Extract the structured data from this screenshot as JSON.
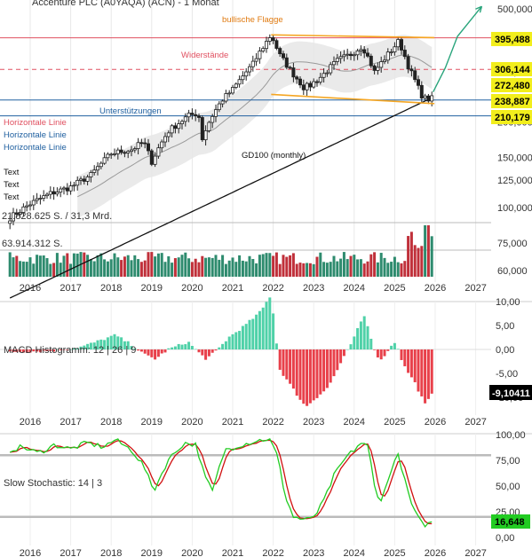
{
  "window": {
    "title": "Accenture PLC (A0YAQA) (ACN) - 1 Monat"
  },
  "colors": {
    "up": "#2e8b6e",
    "down": "#c0303a",
    "resistance": "#e05060",
    "support": "#2060a0",
    "flag": "#f5a623",
    "gd100": "#111111",
    "tag_bg": "#f2ee1c",
    "macd_pos": "#4fd1a8",
    "macd_neg": "#e8404a",
    "stoch_k": "#22cc22",
    "stoch_d": "#d01010"
  },
  "chart_data": [
    {
      "type": "candlestick",
      "title": "Accenture PLC (A0YAQA) (ACN) - 1 Monat",
      "x_ticks": [
        "2016",
        "2017",
        "2018",
        "2019",
        "2020",
        "2021",
        "2022",
        "2023",
        "2024",
        "2025",
        "2026",
        "2027"
      ],
      "y_ticks": [
        "500,000",
        "400,000",
        "300,000",
        "200,000",
        "150,000",
        "125,000",
        "100,000",
        "75,000",
        "60,000"
      ],
      "y_tick_values": [
        500,
        400,
        300,
        200,
        150,
        125,
        100,
        75,
        60
      ],
      "y_scale": "log",
      "ylim": [
        55,
        520
      ],
      "xlim": [
        2015.5,
        2027.4
      ],
      "anchors": [
        [
          2015.5,
          92
        ],
        [
          2016.0,
          103
        ],
        [
          2016.5,
          112
        ],
        [
          2017.0,
          118
        ],
        [
          2017.5,
          130
        ],
        [
          2018.0,
          155
        ],
        [
          2018.5,
          160
        ],
        [
          2018.8,
          170
        ],
        [
          2019.0,
          145
        ],
        [
          2019.4,
          185
        ],
        [
          2019.9,
          210
        ],
        [
          2020.15,
          215
        ],
        [
          2020.25,
          175
        ],
        [
          2020.45,
          205
        ],
        [
          2020.75,
          240
        ],
        [
          2021.0,
          260
        ],
        [
          2021.5,
          320
        ],
        [
          2021.95,
          405
        ],
        [
          2022.15,
          345
        ],
        [
          2022.45,
          300
        ],
        [
          2022.75,
          265
        ],
        [
          2022.9,
          268
        ],
        [
          2023.2,
          290
        ],
        [
          2023.6,
          330
        ],
        [
          2023.9,
          345
        ],
        [
          2024.2,
          370
        ],
        [
          2024.5,
          300
        ],
        [
          2024.9,
          355
        ],
        [
          2025.1,
          385
        ],
        [
          2025.35,
          310
        ],
        [
          2025.65,
          250
        ],
        [
          2025.8,
          238
        ],
        [
          2025.95,
          250
        ]
      ],
      "levels": [
        {
          "label": "395,488",
          "value": 395.488,
          "kind": "resistance"
        },
        {
          "label": "306,144",
          "value": 306.144,
          "kind": "resistance"
        },
        {
          "label": "272,480",
          "value": 272.48,
          "kind": "last"
        },
        {
          "label": "238,887",
          "value": 238.887,
          "kind": "support"
        },
        {
          "label": "210,179",
          "value": 210.179,
          "kind": "support"
        }
      ],
      "annotations": {
        "flag": "bullische Flagge",
        "resistances": "Widerstände",
        "supports": "Unterstützungen",
        "h1": "Horizontale Linie",
        "h2": "Horizontale Linie",
        "h3": "Horizontale Linie",
        "gd": "GD100 (monthly)",
        "t1": "Text",
        "t2": "Text",
        "t3": "Text"
      },
      "volume": {
        "label_top": "21.828.625 S. / 31,3 Mrd.",
        "label_mid": "63.914.312 S."
      },
      "projection": [
        [
          2025.95,
          255
        ],
        [
          2026.25,
          310
        ],
        [
          2026.55,
          400
        ],
        [
          2027.15,
          510
        ]
      ]
    },
    {
      "type": "bar",
      "title": "MACD Histogramm: 12 | 26 | 9",
      "x_ticks": [
        "2016",
        "2017",
        "2018",
        "2019",
        "2020",
        "2021",
        "2022",
        "2023",
        "2024",
        "2025",
        "2026",
        "2027"
      ],
      "y_ticks": [
        "10,00",
        "5,00",
        "0,00",
        "-5,00",
        "-10,00"
      ],
      "y_tick_values": [
        10,
        5,
        0,
        -5,
        -10
      ],
      "ylim": [
        -12,
        12
      ],
      "last_value": "-9,10411",
      "anchors": [
        [
          2015.5,
          -0.5
        ],
        [
          2016.5,
          -0.3
        ],
        [
          2017.2,
          0.4
        ],
        [
          2017.6,
          1.5
        ],
        [
          2018.1,
          3.0
        ],
        [
          2018.5,
          1.0
        ],
        [
          2018.8,
          -1.0
        ],
        [
          2019.1,
          -2.0
        ],
        [
          2019.4,
          0.0
        ],
        [
          2019.9,
          1.6
        ],
        [
          2020.2,
          -1.0
        ],
        [
          2020.35,
          -2.0
        ],
        [
          2020.6,
          -0.3
        ],
        [
          2020.9,
          2.5
        ],
        [
          2021.3,
          5.0
        ],
        [
          2021.7,
          8.0
        ],
        [
          2021.95,
          11.5
        ],
        [
          2022.1,
          0.0
        ],
        [
          2022.15,
          -4.0
        ],
        [
          2022.55,
          -9.0
        ],
        [
          2022.8,
          -12.0
        ],
        [
          2023.0,
          -10.5
        ],
        [
          2023.35,
          -8.0
        ],
        [
          2023.6,
          -4.0
        ],
        [
          2023.85,
          0.0
        ],
        [
          2024.0,
          2.5
        ],
        [
          2024.15,
          5.5
        ],
        [
          2024.25,
          7.0
        ],
        [
          2024.4,
          3.0
        ],
        [
          2024.5,
          0.0
        ],
        [
          2024.65,
          -2.5
        ],
        [
          2024.8,
          -0.5
        ],
        [
          2024.9,
          0.5
        ],
        [
          2025.0,
          1.5
        ],
        [
          2025.1,
          0.0
        ],
        [
          2025.2,
          -3.0
        ],
        [
          2025.5,
          -7.0
        ],
        [
          2025.75,
          -11.5
        ],
        [
          2025.95,
          -9.1
        ]
      ]
    },
    {
      "type": "line",
      "title": "Slow Stochastic: 14 | 3",
      "x_ticks": [
        "2016",
        "2017",
        "2018",
        "2019",
        "2020",
        "2021",
        "2022",
        "2023",
        "2024",
        "2025",
        "2026",
        "2027"
      ],
      "y_ticks": [
        "100,00",
        "75,00",
        "50,00",
        "25,00",
        "0,00"
      ],
      "y_tick_values": [
        100,
        75,
        50,
        25,
        0
      ],
      "ylim": [
        -3,
        103
      ],
      "last_value": "16,648",
      "k_anchors": [
        [
          2015.5,
          85
        ],
        [
          2015.8,
          88
        ],
        [
          2016.2,
          82
        ],
        [
          2016.6,
          90
        ],
        [
          2017.0,
          86
        ],
        [
          2017.4,
          92
        ],
        [
          2017.8,
          88
        ],
        [
          2018.1,
          95
        ],
        [
          2018.5,
          85
        ],
        [
          2018.8,
          70
        ],
        [
          2019.05,
          45
        ],
        [
          2019.4,
          75
        ],
        [
          2019.8,
          92
        ],
        [
          2020.1,
          90
        ],
        [
          2020.3,
          60
        ],
        [
          2020.5,
          45
        ],
        [
          2020.8,
          85
        ],
        [
          2021.2,
          90
        ],
        [
          2021.6,
          94
        ],
        [
          2021.9,
          96
        ],
        [
          2022.1,
          80
        ],
        [
          2022.3,
          40
        ],
        [
          2022.5,
          20
        ],
        [
          2022.7,
          18
        ],
        [
          2022.9,
          17
        ],
        [
          2023.1,
          25
        ],
        [
          2023.3,
          40
        ],
        [
          2023.5,
          60
        ],
        [
          2023.8,
          78
        ],
        [
          2024.0,
          85
        ],
        [
          2024.15,
          92
        ],
        [
          2024.35,
          88
        ],
        [
          2024.5,
          50
        ],
        [
          2024.65,
          35
        ],
        [
          2024.8,
          50
        ],
        [
          2024.95,
          72
        ],
        [
          2025.1,
          80
        ],
        [
          2025.25,
          55
        ],
        [
          2025.45,
          28
        ],
        [
          2025.65,
          14
        ],
        [
          2025.8,
          12
        ],
        [
          2025.95,
          17
        ]
      ],
      "reference_lines": [
        80,
        20
      ]
    }
  ]
}
